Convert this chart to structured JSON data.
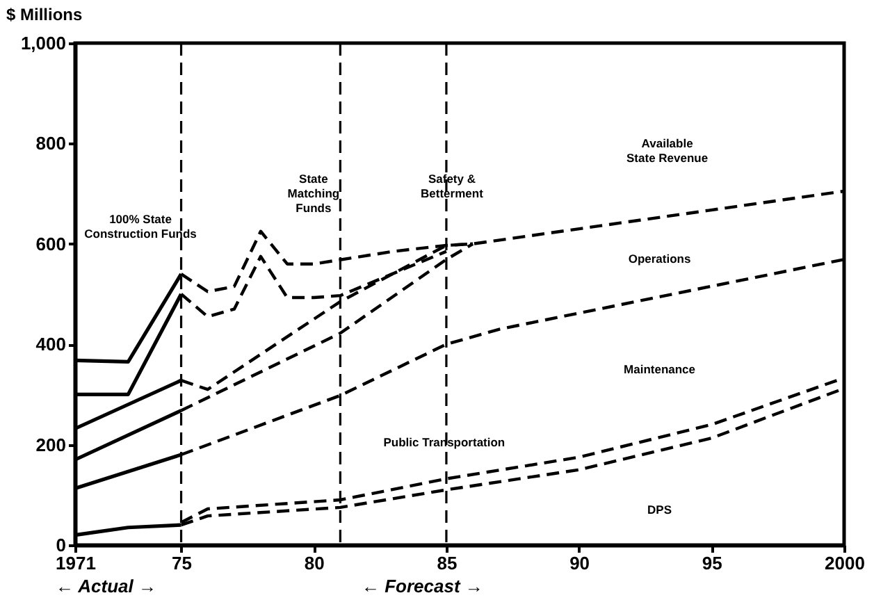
{
  "chart_data": {
    "type": "line",
    "ylabel": "$ Millions",
    "xlim": [
      1971,
      2000
    ],
    "xticks": [
      1971,
      {
        "value": 1975,
        "label": "75"
      },
      {
        "value": 1980,
        "label": "80"
      },
      {
        "value": 1985,
        "label": "85"
      },
      {
        "value": 1990,
        "label": "90"
      },
      {
        "value": 1995,
        "label": "95"
      },
      2000
    ],
    "ylim": [
      0,
      1000
    ],
    "yticks": [
      0,
      200,
      400,
      600,
      800,
      {
        "value": 1000,
        "label": "1,000"
      }
    ],
    "series": [
      {
        "color": "#000000",
        "line_style": "solid",
        "x": [
          1971,
          1973,
          1975
        ],
        "values": [
          368,
          365,
          540
        ]
      },
      {
        "color": "#000000",
        "line_style": "dashed",
        "x": [
          1975,
          1976,
          1977,
          1978,
          1979,
          1980,
          1983,
          1985,
          1986,
          2000
        ],
        "values": [
          540,
          505,
          515,
          625,
          560,
          560,
          585,
          597,
          600,
          705
        ]
      },
      {
        "color": "#000000",
        "line_style": "solid",
        "x": [
          1971,
          1973,
          1975
        ],
        "values": [
          300,
          300,
          500
        ]
      },
      {
        "color": "#000000",
        "line_style": "dashed",
        "x": [
          1975,
          1976,
          1977,
          1978,
          1979,
          1980,
          1981,
          1985
        ],
        "values": [
          500,
          455,
          470,
          575,
          493,
          493,
          497,
          585
        ]
      },
      {
        "color": "#000000",
        "line_style": "solid",
        "x": [
          1971,
          1975
        ],
        "values": [
          232,
          328
        ]
      },
      {
        "color": "#000000",
        "line_style": "dashed",
        "x": [
          1975,
          1976,
          1981,
          1985,
          1986
        ],
        "values": [
          328,
          310,
          485,
          597,
          600
        ]
      },
      {
        "color": "#000000",
        "line_style": "solid",
        "x": [
          1971,
          1975
        ],
        "values": [
          170,
          268
        ]
      },
      {
        "color": "#000000",
        "line_style": "dashed",
        "x": [
          1975,
          1981,
          1985,
          1986
        ],
        "values": [
          268,
          422,
          569,
          600
        ]
      },
      {
        "color": "#000000",
        "line_style": "solid",
        "x": [
          1971,
          1975
        ],
        "values": [
          113,
          180
        ]
      },
      {
        "color": "#000000",
        "line_style": "dashed",
        "x": [
          1975,
          1981,
          1985,
          1987,
          2000
        ],
        "values": [
          180,
          298,
          400,
          430,
          569
        ]
      },
      {
        "color": "#000000",
        "line_style": "solid",
        "x": [
          1971,
          1973,
          1975
        ],
        "values": [
          20,
          35,
          40
        ]
      },
      {
        "color": "#000000",
        "line_style": "dashed",
        "x": [
          1975,
          1976,
          1981,
          1985,
          1990,
          1995,
          2000
        ],
        "values": [
          45,
          72,
          90,
          132,
          175,
          240,
          333
        ]
      },
      {
        "color": "#000000",
        "line_style": "dashed",
        "x": [
          1975,
          1976,
          1981,
          1985,
          1990,
          1995,
          2000
        ],
        "values": [
          40,
          58,
          75,
          110,
          150,
          213,
          312
        ]
      }
    ],
    "ref_lines": [
      {
        "axis": "x",
        "value": 1975,
        "color": "#000000",
        "line_style": "dashed"
      },
      {
        "axis": "x",
        "value": 1981,
        "color": "#000000",
        "line_style": "dashed"
      },
      {
        "axis": "x",
        "value": 1985,
        "color": "#000000",
        "line_style": "dashed"
      }
    ],
    "annotations": [
      "100% State\nConstruction Funds",
      "State\nMatching\nFunds",
      "Safety &\nBetterment",
      "Available\nState Revenue",
      "Operations",
      "Maintenance",
      "Public Transportation",
      "DPS",
      "← Actual →",
      "← Forecast →"
    ]
  }
}
